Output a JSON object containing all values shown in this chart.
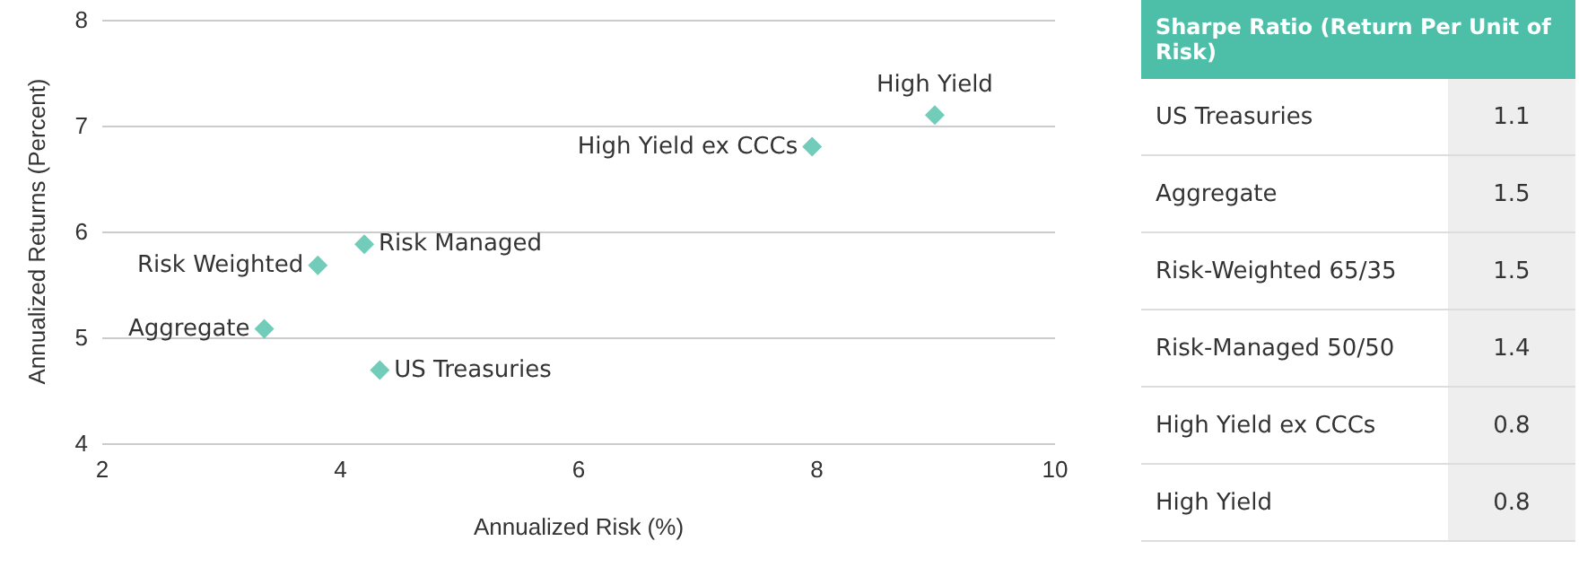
{
  "chart_data": [
    {
      "type": "scatter",
      "xlabel": "Annualized Risk (%)",
      "ylabel": "Annualized Returns (Percent)",
      "color": "#4dbfa8",
      "marker": "diamond",
      "grid": "y",
      "x": [
        4.33,
        3.36,
        3.81,
        4.2,
        7.96,
        8.99
      ],
      "values": [
        4.69,
        5.08,
        5.68,
        5.88,
        6.8,
        7.1
      ],
      "xlim": [
        2,
        10
      ],
      "xticks": [
        2,
        4,
        6,
        8,
        10
      ],
      "ylim": [
        4,
        8
      ],
      "yticks": [
        4,
        5,
        6,
        7,
        8
      ],
      "annotations": [
        {
          "text": "US Treasuries",
          "x": 4.33,
          "y": 4.69
        },
        {
          "text": "Aggregate",
          "x": 3.36,
          "y": 5.08
        },
        {
          "text": "Risk Weighted",
          "x": 3.81,
          "y": 5.68
        },
        {
          "text": "Risk Managed",
          "x": 4.2,
          "y": 5.88
        },
        {
          "text": "High Yield ex CCCs",
          "x": 7.96,
          "y": 6.8
        },
        {
          "text": "High Yield",
          "x": 8.99,
          "y": 7.1
        }
      ]
    },
    {
      "type": "other",
      "title": "Sharpe Ratio (Return Per Unit of Risk)",
      "data_labels": true,
      "categories": [
        "US Treasuries",
        "Aggregate",
        "Risk-Weighted 65/35",
        "Risk-Managed 50/50",
        "High Yield ex CCCs",
        "High Yield"
      ],
      "values": [
        1.1,
        1.5,
        1.5,
        1.4,
        0.8,
        0.8
      ]
    }
  ]
}
